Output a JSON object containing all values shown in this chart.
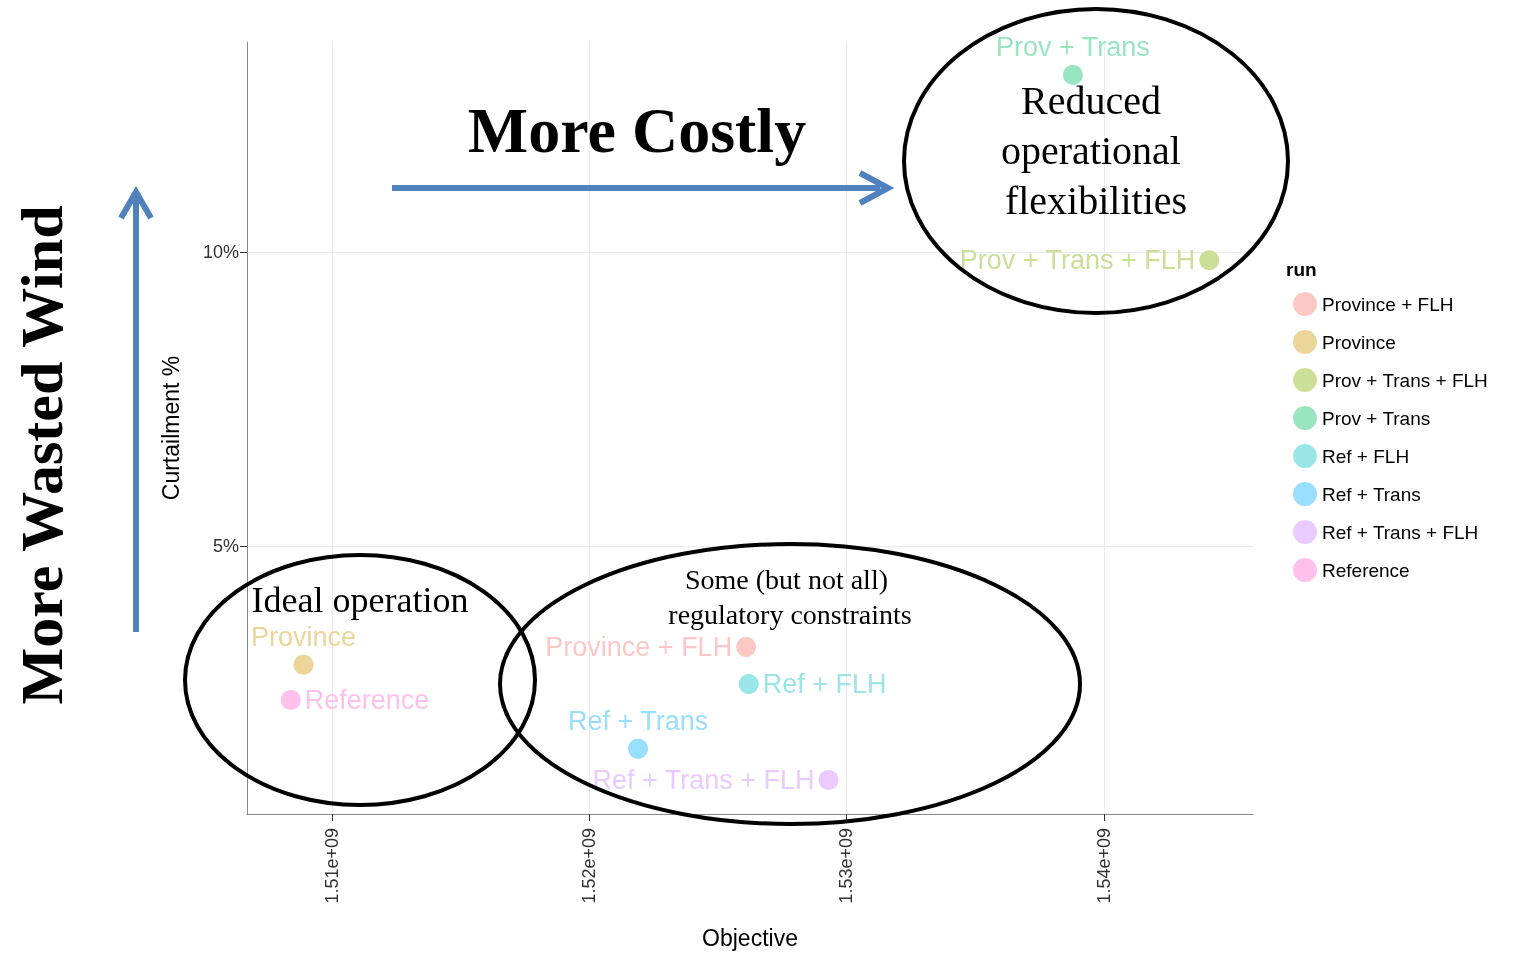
{
  "chart_data": {
    "type": "scatter",
    "xlabel": "Objective",
    "ylabel": "Curtailment %",
    "legend_title": "run",
    "legend": "right",
    "grid": true,
    "marker": "circle",
    "xlim": [
      1506700000.0,
      1545800000.0
    ],
    "xticks": [
      {
        "value": 1510000000.0,
        "label": "1.51e+09"
      },
      {
        "value": 1520000000.0,
        "label": "1.52e+09"
      },
      {
        "value": 1530000000.0,
        "label": "1.53e+09"
      },
      {
        "value": 1540000000.0,
        "label": "1.54e+09"
      }
    ],
    "ylim": [
      0.44,
      13.57
    ],
    "yticks": [
      {
        "value": 5,
        "label": "5%"
      },
      {
        "value": 10,
        "label": "10%"
      }
    ],
    "series": [
      {
        "name": "Province + FLH",
        "color": "#fcc8c5",
        "x": [
          1526100000.0
        ],
        "values": [
          3.28
        ]
      },
      {
        "name": "Province",
        "color": "#ebd599",
        "x": [
          1508900000.0
        ],
        "values": [
          2.98
        ]
      },
      {
        "name": "Prov + Trans + FLH",
        "color": "#cbdf99",
        "x": [
          1544100000.0
        ],
        "values": [
          9.86
        ]
      },
      {
        "name": "Prov + Trans",
        "color": "#99e5c2",
        "x": [
          1538800000.0
        ],
        "values": [
          13.01
        ]
      },
      {
        "name": "Ref + FLH",
        "color": "#99e5e7",
        "x": [
          1526200000.0
        ],
        "values": [
          2.65
        ]
      },
      {
        "name": "Ref + Trans",
        "color": "#99ddff",
        "x": [
          1521900000.0
        ],
        "values": [
          1.55
        ]
      },
      {
        "name": "Ref + Trans + FLH",
        "color": "#e9cbff",
        "x": [
          1529300000.0
        ],
        "values": [
          1.02
        ]
      },
      {
        "name": "Reference",
        "color": "#ffc0eb",
        "x": [
          1508400000.0
        ],
        "values": [
          2.38
        ]
      }
    ],
    "annotations": [
      "More Costly",
      "More Wasted Wind",
      "Reduced operational flexibilities",
      "Ideal operation",
      "Some (but not all) regulatory constraints"
    ]
  }
}
